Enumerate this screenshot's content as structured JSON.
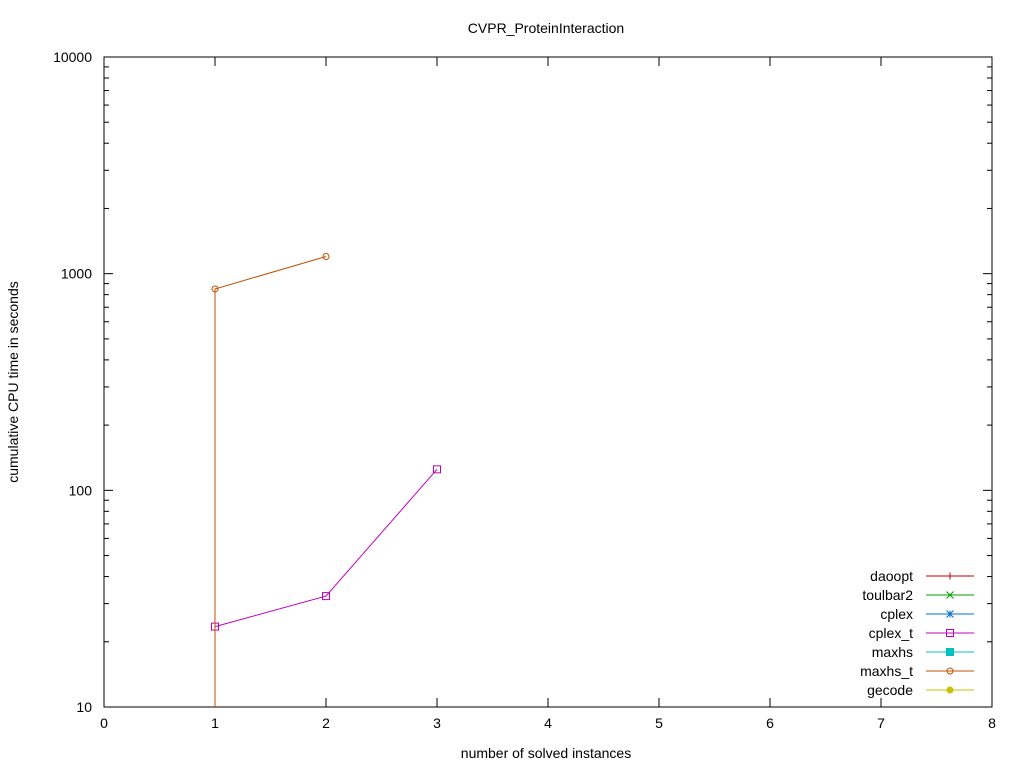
{
  "chart_data": {
    "type": "line",
    "title": "CVPR_ProteinInteraction",
    "xlabel": "number of solved instances",
    "ylabel": "cumulative CPU time in seconds",
    "xlim": [
      0,
      8
    ],
    "ylim": [
      10,
      10000
    ],
    "yscale": "log",
    "xticks": [
      "0",
      "1",
      "2",
      "3",
      "4",
      "5",
      "6",
      "7",
      "8"
    ],
    "yticks": [
      {
        "value": 10,
        "label": "10"
      },
      {
        "value": 100,
        "label": "100"
      },
      {
        "value": 1000,
        "label": "1000"
      },
      {
        "value": 10000,
        "label": "10000"
      }
    ],
    "grid": false,
    "legend_position": "bottom-right",
    "series": [
      {
        "name": "daoopt",
        "color": "#c00000",
        "marker": "plus",
        "x": [],
        "y": []
      },
      {
        "name": "toulbar2",
        "color": "#00a000",
        "marker": "cross",
        "x": [],
        "y": []
      },
      {
        "name": "cplex",
        "color": "#0070c0",
        "marker": "star",
        "x": [],
        "y": []
      },
      {
        "name": "cplex_t",
        "color": "#c000c0",
        "marker": "open-square",
        "x": [
          1,
          2,
          3
        ],
        "y": [
          23.5,
          32.5,
          125
        ]
      },
      {
        "name": "maxhs",
        "color": "#00c0c0",
        "marker": "filled-square",
        "x": [],
        "y": []
      },
      {
        "name": "maxhs_t",
        "color": "#c05000",
        "marker": "open-circle",
        "x": [
          1,
          2
        ],
        "y": [
          850,
          1200
        ],
        "drop_to_floor": true
      },
      {
        "name": "gecode",
        "color": "#c8c000",
        "marker": "filled-circle",
        "x": [],
        "y": []
      }
    ]
  }
}
